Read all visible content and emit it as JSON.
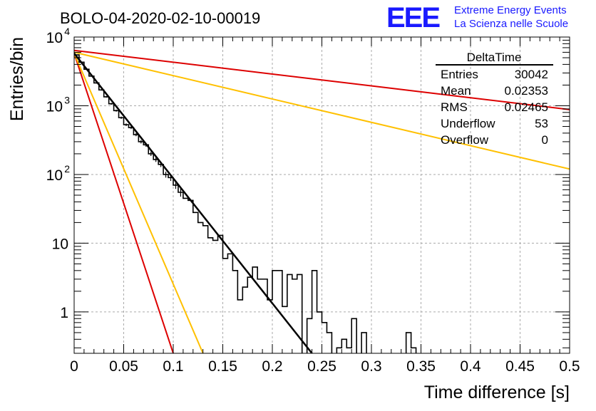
{
  "header": {
    "title": "BOLO-04-2020-02-10-00019",
    "logo_text": "EEE",
    "logo_line1": "Extreme Energy Events",
    "logo_line2": "La Scienza nelle Scuole"
  },
  "colors": {
    "logo_blue": "#1a1aff",
    "histogram": "#000000",
    "fit": "#000000",
    "red_lines": "#dd0000",
    "yellow_lines": "#ffc000",
    "grid": "#aaaaaa"
  },
  "stats_box": {
    "title": "DeltaTime",
    "rows": [
      {
        "label": "Entries",
        "value": "30042"
      },
      {
        "label": "Mean",
        "value": "0.02353"
      },
      {
        "label": "RMS",
        "value": "0.02465"
      },
      {
        "label": "Underflow",
        "value": "53"
      },
      {
        "label": "Overflow",
        "value": "0"
      }
    ]
  },
  "chart_data": {
    "type": "line",
    "xlabel": "Time difference [s]",
    "ylabel": "Entries/bin",
    "xlim": [
      0,
      0.5
    ],
    "ylim": [
      0.25,
      10000
    ],
    "yscale": "log",
    "grid": true,
    "x_ticks": [
      "0",
      "0.05",
      "0.1",
      "0.15",
      "0.2",
      "0.25",
      "0.3",
      "0.35",
      "0.4",
      "0.45",
      "0.5"
    ],
    "y_ticks": [
      {
        "value": 1,
        "label": "1"
      },
      {
        "value": 10,
        "label": "10"
      },
      {
        "value": 100,
        "label": "10",
        "exp": "2"
      },
      {
        "value": 1000,
        "label": "10",
        "exp": "3"
      },
      {
        "value": 10000,
        "label": "10",
        "exp": "4"
      }
    ],
    "histogram": {
      "name": "DeltaTime",
      "bin_width": 0.005,
      "x_start": 0,
      "counts": [
        5500,
        4300,
        3400,
        2700,
        2150,
        1700,
        1350,
        1070,
        850,
        670,
        530,
        480,
        380,
        300,
        270,
        200,
        165,
        140,
        100,
        90,
        70,
        55,
        45,
        42,
        28,
        20,
        18,
        12,
        11,
        13,
        6,
        7,
        4,
        1.5,
        2.3,
        3.2,
        4.5,
        3,
        3,
        1.5,
        4,
        4,
        1.2,
        3.5,
        3,
        3.5,
        0.2,
        0.8,
        4,
        1,
        0.7,
        0.5,
        0.2,
        0.3,
        0.4,
        0.3,
        0.8,
        0.1,
        0.5,
        0.2,
        0.1,
        0.2,
        0.2,
        0.1,
        0.2,
        0.2,
        0.2,
        0.5,
        0.3,
        0.2,
        0.2,
        0.2,
        0.2,
        0.2,
        0.2,
        0.2,
        0.2,
        0.2,
        0.2,
        0.2,
        0.2,
        0.2,
        0.2,
        0.2,
        0.2,
        0.2,
        0.2,
        0.2,
        0.2,
        0.2,
        0.2,
        0.2,
        0.2,
        0.2,
        0.2,
        0.2,
        0.2,
        0.2,
        0.2,
        0.2
      ]
    },
    "lines": [
      {
        "role": "fit",
        "color": "#000000",
        "points": [
          [
            0,
            5800
          ],
          [
            0.24,
            0.25
          ]
        ]
      },
      {
        "role": "red-steep",
        "color": "#dd0000",
        "points": [
          [
            0,
            5800
          ],
          [
            0.1,
            0.25
          ]
        ]
      },
      {
        "role": "yellow-steep",
        "color": "#ffc000",
        "points": [
          [
            0,
            5800
          ],
          [
            0.13,
            0.25
          ]
        ]
      },
      {
        "role": "red-shallow",
        "color": "#dd0000",
        "points": [
          [
            0,
            6400
          ],
          [
            0.5,
            880
          ]
        ]
      },
      {
        "role": "yellow-shallow",
        "color": "#ffc000",
        "points": [
          [
            0,
            6000
          ],
          [
            0.5,
            120
          ]
        ]
      }
    ]
  }
}
